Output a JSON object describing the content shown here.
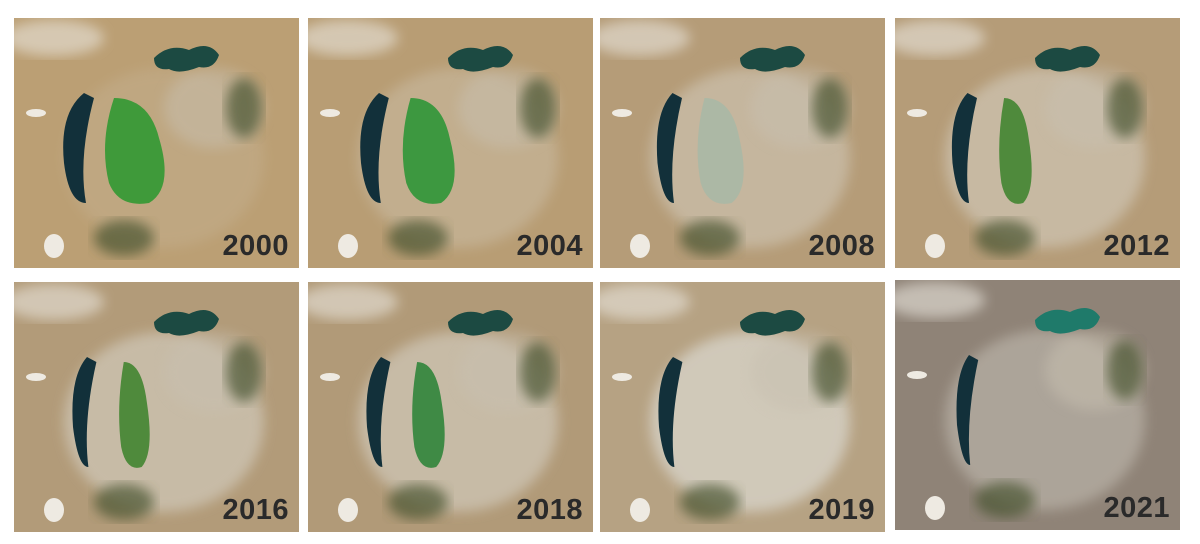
{
  "panels": [
    {
      "year": "2000"
    },
    {
      "year": "2004"
    },
    {
      "year": "2008"
    },
    {
      "year": "2012"
    },
    {
      "year": "2016"
    },
    {
      "year": "2018"
    },
    {
      "year": "2019"
    },
    {
      "year": "2021"
    }
  ]
}
